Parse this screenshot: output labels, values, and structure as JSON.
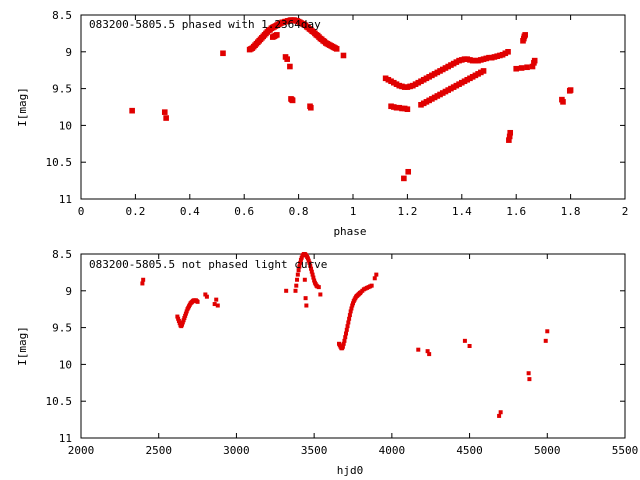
{
  "chart_data": [
    {
      "type": "scatter",
      "title": "083200-5805.5 phased with 1.2364day",
      "xlabel": "phase",
      "ylabel": "I[mag]",
      "xlim": [
        0,
        2
      ],
      "ylim": [
        11,
        8.5
      ],
      "y_inverted": true,
      "x_ticks": [
        "0",
        "0.2",
        "0.4",
        "0.6",
        "0.8",
        "1",
        "1.2",
        "1.4",
        "1.6",
        "1.8",
        "2"
      ],
      "x_tick_values": [
        0,
        0.2,
        0.4,
        0.6,
        0.8,
        1.0,
        1.2,
        1.4,
        1.6,
        1.8,
        2.0
      ],
      "y_ticks": [
        "8.5",
        "9",
        "9.5",
        "10",
        "10.5",
        "11"
      ],
      "y_tick_values": [
        8.5,
        9,
        9.5,
        10,
        10.5,
        11
      ],
      "grid": false,
      "color": "#e00000",
      "series": [
        {
          "x": [
            0.188,
            0.308,
            0.313,
            0.522,
            0.62,
            0.625,
            0.63,
            0.635,
            0.64,
            0.645,
            0.65,
            0.655,
            0.66,
            0.665,
            0.67,
            0.675,
            0.68,
            0.685,
            0.69,
            0.695,
            0.7,
            0.705,
            0.71,
            0.715,
            0.72,
            0.725,
            0.73,
            0.735,
            0.74,
            0.745,
            0.75,
            0.755,
            0.76,
            0.765,
            0.77,
            0.775,
            0.78,
            0.785,
            0.79,
            0.795,
            0.8,
            0.805,
            0.81,
            0.815,
            0.82,
            0.825,
            0.83,
            0.835,
            0.84,
            0.845,
            0.85,
            0.855,
            0.86,
            0.865,
            0.87,
            0.875,
            0.88,
            0.885,
            0.89,
            0.895,
            0.9,
            0.905,
            0.91,
            0.915,
            0.92,
            0.925,
            0.93,
            0.935,
            0.94,
            0.705,
            0.71,
            0.715,
            0.72,
            0.752,
            0.758,
            0.768,
            0.772,
            0.775,
            0.778,
            0.842,
            0.845,
            0.965,
            1.12,
            1.13,
            1.14,
            1.15,
            1.16,
            1.17,
            1.18,
            1.19,
            1.2,
            1.21,
            1.22,
            1.23,
            1.24,
            1.25,
            1.26,
            1.27,
            1.28,
            1.29,
            1.3,
            1.31,
            1.32,
            1.33,
            1.34,
            1.35,
            1.36,
            1.37,
            1.38,
            1.39,
            1.4,
            1.41,
            1.42,
            1.43,
            1.44,
            1.45,
            1.46,
            1.47,
            1.48,
            1.49,
            1.5,
            1.51,
            1.52,
            1.53,
            1.54,
            1.55,
            1.56,
            1.57,
            1.14,
            1.15,
            1.16,
            1.17,
            1.18,
            1.19,
            1.2,
            1.25,
            1.26,
            1.27,
            1.28,
            1.29,
            1.3,
            1.31,
            1.32,
            1.33,
            1.34,
            1.35,
            1.36,
            1.37,
            1.38,
            1.39,
            1.4,
            1.41,
            1.42,
            1.43,
            1.44,
            1.45,
            1.46,
            1.47,
            1.48,
            1.187,
            1.203,
            1.573,
            1.576,
            1.578,
            1.625,
            1.628,
            1.63,
            1.633,
            1.6,
            1.62,
            1.64,
            1.66,
            1.665,
            1.668,
            1.768,
            1.772,
            1.797,
            1.8
          ],
          "y": [
            9.8,
            9.82,
            9.9,
            9.02,
            8.97,
            8.96,
            8.95,
            8.93,
            8.91,
            8.89,
            8.87,
            8.85,
            8.83,
            8.81,
            8.79,
            8.77,
            8.75,
            8.73,
            8.71,
            8.7,
            8.68,
            8.67,
            8.66,
            8.65,
            8.64,
            8.63,
            8.62,
            8.61,
            8.6,
            8.6,
            8.59,
            8.59,
            8.58,
            8.58,
            8.57,
            8.57,
            8.57,
            8.57,
            8.58,
            8.58,
            8.59,
            8.6,
            8.61,
            8.62,
            8.63,
            8.64,
            8.66,
            8.67,
            8.69,
            8.7,
            8.72,
            8.73,
            8.75,
            8.77,
            8.78,
            8.8,
            8.82,
            8.83,
            8.85,
            8.86,
            8.88,
            8.89,
            8.9,
            8.91,
            8.92,
            8.93,
            8.94,
            8.95,
            8.96,
            8.8,
            8.79,
            8.78,
            8.77,
            9.07,
            9.1,
            9.2,
            9.64,
            9.65,
            9.66,
            9.74,
            9.76,
            9.05,
            9.36,
            9.38,
            9.4,
            9.42,
            9.44,
            9.46,
            9.47,
            9.48,
            9.48,
            9.47,
            9.46,
            9.44,
            9.42,
            9.4,
            9.38,
            9.36,
            9.34,
            9.32,
            9.3,
            9.28,
            9.26,
            9.24,
            9.22,
            9.2,
            9.18,
            9.16,
            9.14,
            9.12,
            9.11,
            9.1,
            9.1,
            9.11,
            9.12,
            9.12,
            9.12,
            9.11,
            9.1,
            9.09,
            9.08,
            9.08,
            9.07,
            9.06,
            9.05,
            9.04,
            9.02,
            9.0,
            9.74,
            9.75,
            9.76,
            9.76,
            9.77,
            9.77,
            9.78,
            9.72,
            9.7,
            9.68,
            9.66,
            9.64,
            9.62,
            9.6,
            9.58,
            9.56,
            9.54,
            9.52,
            9.5,
            9.48,
            9.46,
            9.44,
            9.42,
            9.4,
            9.38,
            9.36,
            9.34,
            9.32,
            9.3,
            9.28,
            9.26,
            10.72,
            10.63,
            10.2,
            10.15,
            10.1,
            8.85,
            8.82,
            8.79,
            8.77,
            9.23,
            9.22,
            9.21,
            9.2,
            9.15,
            9.12,
            9.65,
            9.68,
            9.53,
            9.52
          ]
        }
      ]
    },
    {
      "type": "scatter",
      "title": "083200-5805.5 not phased light curve",
      "xlabel": "hjd0",
      "ylabel": "I[mag]",
      "xlim": [
        2000,
        5500
      ],
      "ylim": [
        11,
        8.5
      ],
      "y_inverted": true,
      "x_ticks": [
        "2000",
        "2500",
        "3000",
        "3500",
        "4000",
        "4500",
        "5000",
        "5500"
      ],
      "x_tick_values": [
        2000,
        2500,
        3000,
        3500,
        4000,
        4500,
        5000,
        5500
      ],
      "y_ticks": [
        "8.5",
        "9",
        "9.5",
        "10",
        "10.5",
        "11"
      ],
      "y_tick_values": [
        8.5,
        9,
        9.5,
        10,
        10.5,
        11
      ],
      "grid": false,
      "color": "#e00000",
      "series": [
        {
          "x": [
            2395,
            2400,
            2620,
            2625,
            2630,
            2635,
            2640,
            2645,
            2650,
            2655,
            2660,
            2665,
            2670,
            2675,
            2680,
            2685,
            2690,
            2695,
            2700,
            2705,
            2710,
            2715,
            2720,
            2725,
            2730,
            2735,
            2740,
            2745,
            2750,
            2800,
            2810,
            2860,
            2870,
            2880,
            3320,
            3380,
            3385,
            3390,
            3395,
            3400,
            3405,
            3410,
            3415,
            3420,
            3425,
            3430,
            3435,
            3440,
            3445,
            3450,
            3455,
            3460,
            3465,
            3470,
            3475,
            3480,
            3485,
            3490,
            3495,
            3500,
            3505,
            3510,
            3515,
            3520,
            3530,
            3440,
            3445,
            3450,
            3540,
            3660,
            3665,
            3670,
            3675,
            3680,
            3685,
            3690,
            3695,
            3700,
            3705,
            3710,
            3715,
            3720,
            3725,
            3730,
            3735,
            3740,
            3745,
            3750,
            3755,
            3760,
            3765,
            3770,
            3775,
            3780,
            3785,
            3790,
            3795,
            3800,
            3810,
            3820,
            3830,
            3840,
            3850,
            3860,
            3870,
            3890,
            3900,
            4170,
            4230,
            4240,
            4470,
            4500,
            4880,
            4885,
            4990,
            5000,
            4690,
            4700
          ],
          "y": [
            8.9,
            8.85,
            9.35,
            9.38,
            9.41,
            9.44,
            9.47,
            9.48,
            9.46,
            9.43,
            9.4,
            9.37,
            9.34,
            9.31,
            9.28,
            9.25,
            9.23,
            9.21,
            9.19,
            9.17,
            9.16,
            9.15,
            9.14,
            9.13,
            9.13,
            9.13,
            9.13,
            9.14,
            9.15,
            9.05,
            9.08,
            9.18,
            9.12,
            9.2,
            9.0,
            9.0,
            8.93,
            8.85,
            8.78,
            8.72,
            8.67,
            8.62,
            8.58,
            8.55,
            8.52,
            8.51,
            8.5,
            8.5,
            8.51,
            8.52,
            8.54,
            8.56,
            8.59,
            8.62,
            8.66,
            8.7,
            8.74,
            8.78,
            8.82,
            8.86,
            8.89,
            8.91,
            8.93,
            8.94,
            8.95,
            8.85,
            9.1,
            9.2,
            9.05,
            9.72,
            9.74,
            9.76,
            9.78,
            9.78,
            9.76,
            9.72,
            9.68,
            9.63,
            9.58,
            9.53,
            9.48,
            9.43,
            9.38,
            9.33,
            9.28,
            9.24,
            9.2,
            9.17,
            9.14,
            9.12,
            9.1,
            9.08,
            9.07,
            9.06,
            9.05,
            9.04,
            9.03,
            9.02,
            9.0,
            8.98,
            8.97,
            8.96,
            8.95,
            8.94,
            8.93,
            8.83,
            8.78,
            9.8,
            9.82,
            9.86,
            9.68,
            9.75,
            10.12,
            10.2,
            9.68,
            9.55,
            10.7,
            10.65
          ]
        }
      ]
    }
  ]
}
